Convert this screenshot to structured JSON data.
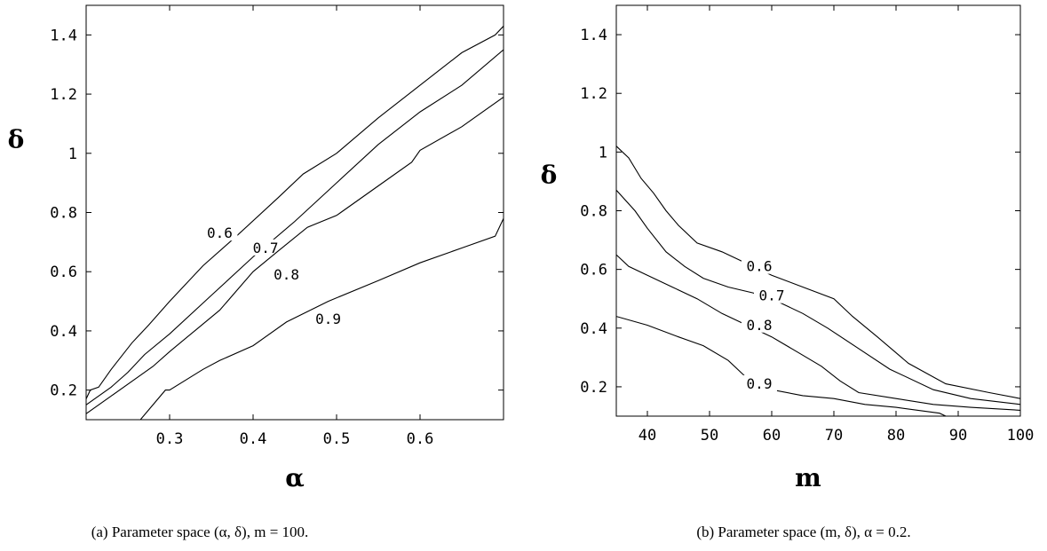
{
  "chart_data": [
    {
      "type": "line",
      "xlabel": "α",
      "ylabel": "δ",
      "xlim": [
        0.2,
        0.7
      ],
      "ylim": [
        0.1,
        1.5
      ],
      "xticks": [
        0.3,
        0.4,
        0.5,
        0.6
      ],
      "yticks": [
        0.2,
        0.4,
        0.6,
        0.8,
        1,
        1.2,
        1.4
      ],
      "xtick_labels": [
        "0.3",
        "0.4",
        "0.5",
        "0.6"
      ],
      "ytick_labels": [
        "0.2",
        "0.4",
        "0.6",
        "0.8",
        "1",
        "1.2",
        "1.4"
      ],
      "caption": "(a) Parameter space (α, δ), m = 100.",
      "series": [
        {
          "name": "0.6",
          "label_at": [
            0.36,
            0.72
          ],
          "x": [
            0.2,
            0.205,
            0.215,
            0.23,
            0.255,
            0.275,
            0.3,
            0.34,
            0.38,
            0.43,
            0.46,
            0.5,
            0.55,
            0.6,
            0.65,
            0.69,
            0.7
          ],
          "y": [
            0.17,
            0.2,
            0.21,
            0.27,
            0.36,
            0.42,
            0.5,
            0.62,
            0.72,
            0.85,
            0.93,
            1.0,
            1.12,
            1.23,
            1.34,
            1.4,
            1.43
          ]
        },
        {
          "name": "0.7",
          "label_at": [
            0.415,
            0.67
          ],
          "x": [
            0.2,
            0.23,
            0.25,
            0.27,
            0.3,
            0.35,
            0.4,
            0.45,
            0.5,
            0.55,
            0.6,
            0.65,
            0.7
          ],
          "y": [
            0.15,
            0.21,
            0.26,
            0.32,
            0.39,
            0.52,
            0.65,
            0.77,
            0.9,
            1.03,
            1.14,
            1.23,
            1.35
          ]
        },
        {
          "name": "0.8",
          "label_at": [
            0.44,
            0.58
          ],
          "x": [
            0.2,
            0.23,
            0.26,
            0.28,
            0.3,
            0.33,
            0.36,
            0.4,
            0.43,
            0.465,
            0.5,
            0.505,
            0.55,
            0.59,
            0.6,
            0.65,
            0.7
          ],
          "y": [
            0.12,
            0.18,
            0.24,
            0.28,
            0.33,
            0.4,
            0.47,
            0.6,
            0.67,
            0.75,
            0.79,
            0.8,
            0.89,
            0.97,
            1.01,
            1.09,
            1.19
          ]
        },
        {
          "name": "0.9",
          "label_at": [
            0.49,
            0.43
          ],
          "x": [
            0.265,
            0.295,
            0.3,
            0.34,
            0.36,
            0.4,
            0.44,
            0.49,
            0.55,
            0.6,
            0.65,
            0.69,
            0.7
          ],
          "y": [
            0.1,
            0.2,
            0.2,
            0.27,
            0.3,
            0.35,
            0.43,
            0.5,
            0.57,
            0.63,
            0.68,
            0.72,
            0.78
          ]
        }
      ]
    },
    {
      "type": "line",
      "xlabel": "m",
      "ylabel": "δ",
      "xlim": [
        35,
        100
      ],
      "ylim": [
        0.1,
        1.5
      ],
      "xticks": [
        40,
        50,
        60,
        70,
        80,
        90,
        100
      ],
      "yticks": [
        0.2,
        0.4,
        0.6,
        0.8,
        1,
        1.2,
        1.4
      ],
      "xtick_labels": [
        "40",
        "50",
        "60",
        "70",
        "80",
        "90",
        "100"
      ],
      "ytick_labels": [
        "0.2",
        "0.4",
        "0.6",
        "0.8",
        "1",
        "1.2",
        "1.4"
      ],
      "caption": "(b) Parameter space (m, δ), α = 0.2.",
      "series": [
        {
          "name": "0.6",
          "label_at": [
            58,
            0.6
          ],
          "x": [
            35,
            37,
            39,
            41,
            43,
            45,
            48,
            52,
            56,
            60,
            65,
            70,
            73,
            77,
            82,
            88,
            95,
            100
          ],
          "y": [
            1.02,
            0.98,
            0.91,
            0.86,
            0.8,
            0.75,
            0.69,
            0.66,
            0.62,
            0.58,
            0.54,
            0.5,
            0.44,
            0.37,
            0.28,
            0.21,
            0.18,
            0.16
          ]
        },
        {
          "name": "0.7",
          "label_at": [
            60,
            0.5
          ],
          "x": [
            35,
            38,
            40,
            43,
            46,
            49,
            53,
            57,
            61,
            65,
            69,
            74,
            79,
            86,
            92,
            100
          ],
          "y": [
            0.87,
            0.8,
            0.74,
            0.66,
            0.61,
            0.57,
            0.54,
            0.52,
            0.49,
            0.45,
            0.4,
            0.33,
            0.26,
            0.19,
            0.16,
            0.14
          ]
        },
        {
          "name": "0.8",
          "label_at": [
            58,
            0.4
          ],
          "x": [
            35,
            37,
            40,
            44,
            48,
            52,
            56,
            60,
            64,
            68,
            71,
            74,
            80,
            86,
            92,
            100
          ],
          "y": [
            0.65,
            0.61,
            0.58,
            0.54,
            0.5,
            0.45,
            0.41,
            0.37,
            0.32,
            0.27,
            0.22,
            0.18,
            0.16,
            0.14,
            0.13,
            0.12
          ]
        },
        {
          "name": "0.9",
          "label_at": [
            58,
            0.2
          ],
          "x": [
            35,
            40,
            45,
            49,
            53,
            56,
            58,
            60,
            65,
            70,
            75,
            80,
            87,
            88
          ],
          "y": [
            0.44,
            0.41,
            0.37,
            0.34,
            0.29,
            0.23,
            0.2,
            0.19,
            0.17,
            0.16,
            0.14,
            0.13,
            0.11,
            0.1
          ]
        }
      ]
    }
  ]
}
